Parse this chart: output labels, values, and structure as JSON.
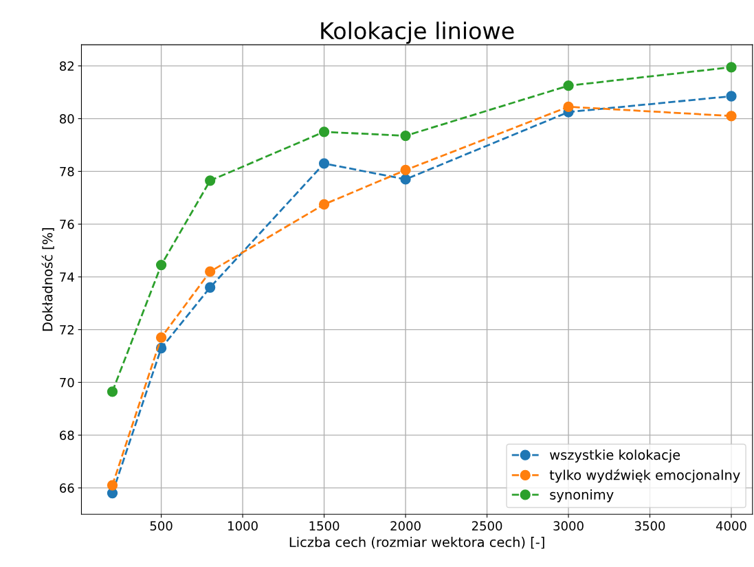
{
  "chart_data": {
    "type": "line",
    "title": "Kolokacje liniowe",
    "xlabel": "Liczba cech (rozmiar wektora cech) [-]",
    "ylabel": "Dokładność [%]",
    "x": [
      200,
      500,
      800,
      1500,
      2000,
      3000,
      4000
    ],
    "series": [
      {
        "name": "wszystkie kolokacje",
        "color": "#1f77b4",
        "values": [
          65.8,
          71.3,
          73.6,
          78.3,
          77.7,
          80.25,
          80.85
        ]
      },
      {
        "name": "tylko wydźwięk emocjonalny",
        "color": "#ff7f0e",
        "values": [
          66.1,
          71.7,
          74.2,
          76.75,
          78.05,
          80.45,
          80.1
        ]
      },
      {
        "name": "synonimy",
        "color": "#2ca02c",
        "values": [
          69.65,
          74.45,
          77.65,
          79.5,
          79.35,
          81.25,
          81.95
        ]
      }
    ],
    "xlim": [
      10,
      4130
    ],
    "ylim": [
      65.0,
      82.8
    ],
    "xticks": [
      500,
      1000,
      1500,
      2000,
      2500,
      3000,
      3500,
      4000
    ],
    "yticks": [
      66,
      68,
      70,
      72,
      74,
      76,
      78,
      80,
      82
    ],
    "grid": true,
    "legend": "bottom right",
    "marker": "circle",
    "line_style": "dashed"
  }
}
